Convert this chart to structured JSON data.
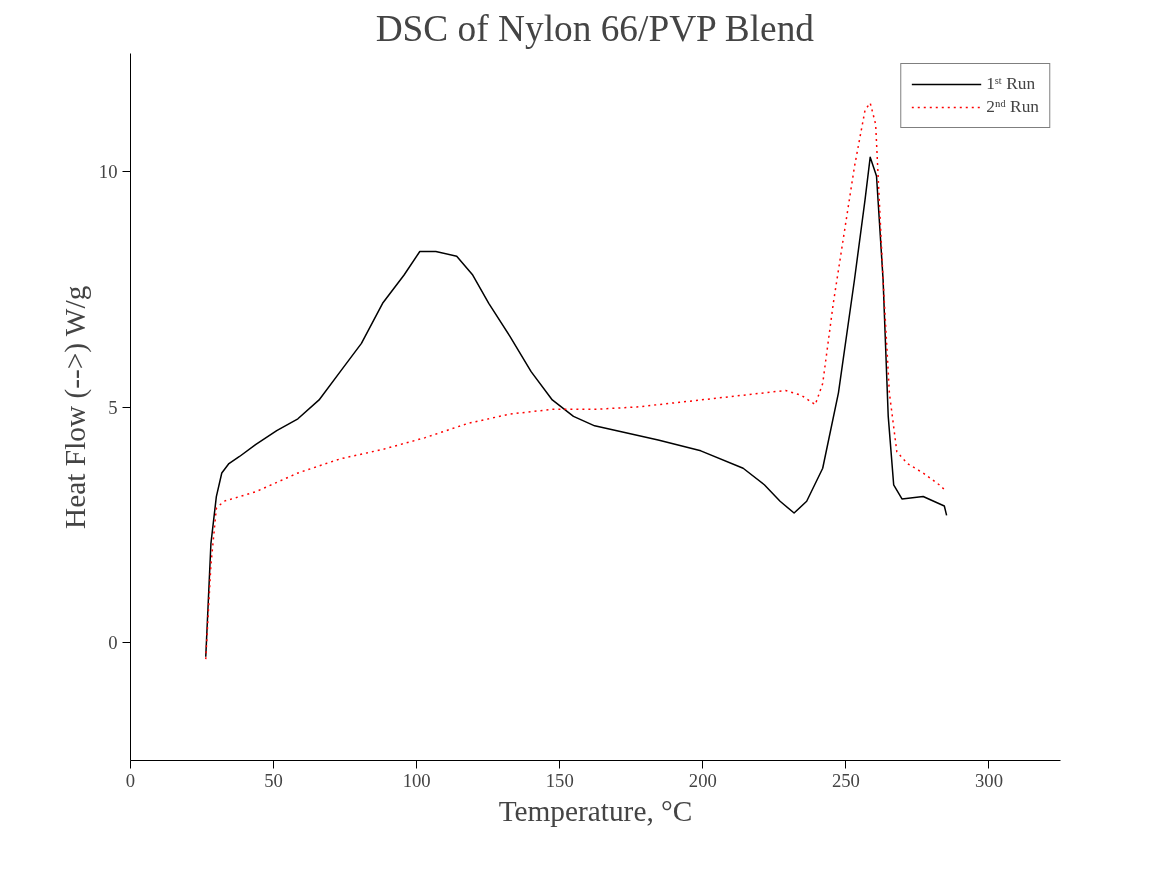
{
  "chart_data": {
    "type": "line",
    "title": "DSC of Nylon 66/PVP Blend",
    "xlabel": "Temperature, °C",
    "ylabel": "Heat Flow (-->) W/g",
    "xlim": [
      0,
      325
    ],
    "ylim": [
      -2.5,
      12.5
    ],
    "xticks": [
      0,
      50,
      100,
      150,
      200,
      250,
      300
    ],
    "yticks": [
      0,
      5,
      10
    ],
    "grid": false,
    "legend": "top right",
    "marker": "none",
    "series": [
      {
        "name": "1ˢᵗ Run",
        "color": "#000000",
        "line_style": "solid",
        "x": [
          26.3,
          28.1,
          30,
          31.9,
          34.4,
          38.1,
          43.7,
          51.1,
          58.5,
          65.9,
          73.3,
          80.7,
          88.1,
          95.6,
          101.1,
          106.7,
          114,
          119.6,
          125.2,
          132.6,
          140,
          147.4,
          154.8,
          162.2,
          169.6,
          184.4,
          199.3,
          214.1,
          221.5,
          227,
          231.9,
          236.3,
          241.9,
          247.4,
          253,
          256.7,
          258.5,
          260.7,
          263,
          264.8,
          266.7,
          269.6,
          277,
          284.4,
          285.2
        ],
        "values": [
          -0.3,
          2.1,
          3.1,
          3.6,
          3.8,
          3.95,
          4.2,
          4.5,
          4.75,
          5.15,
          5.75,
          6.35,
          7.2,
          7.8,
          8.3,
          8.3,
          8.2,
          7.8,
          7.2,
          6.5,
          5.75,
          5.15,
          4.8,
          4.6,
          4.5,
          4.3,
          4.07,
          3.7,
          3.35,
          3.0,
          2.75,
          3.0,
          3.7,
          5.3,
          7.7,
          9.4,
          10.3,
          9.9,
          7.7,
          4.8,
          3.35,
          3.05,
          3.1,
          2.9,
          2.7
        ]
      },
      {
        "name": "2ⁿᵈ Run",
        "color": "#ff0000",
        "line_style": "dotted",
        "x": [
          26.3,
          28.1,
          30,
          32.6,
          43.7,
          58.5,
          73.3,
          88.1,
          103,
          117.8,
          132.6,
          147.4,
          162.2,
          177,
          191.9,
          206.7,
          221.5,
          228.9,
          234.4,
          239.3,
          241.9,
          245.6,
          249.3,
          253,
          256.7,
          258.5,
          260.4,
          263,
          265.2,
          267.8,
          271.5,
          277,
          282.6,
          284.4
        ],
        "values": [
          -0.35,
          1.65,
          2.85,
          3.0,
          3.2,
          3.6,
          3.9,
          4.1,
          4.35,
          4.65,
          4.85,
          4.95,
          4.95,
          5.0,
          5.1,
          5.2,
          5.3,
          5.35,
          5.25,
          5.05,
          5.5,
          7.2,
          8.65,
          10.1,
          11.3,
          11.45,
          11.0,
          7.7,
          5.3,
          4.05,
          3.8,
          3.6,
          3.35,
          3.25
        ]
      }
    ]
  }
}
